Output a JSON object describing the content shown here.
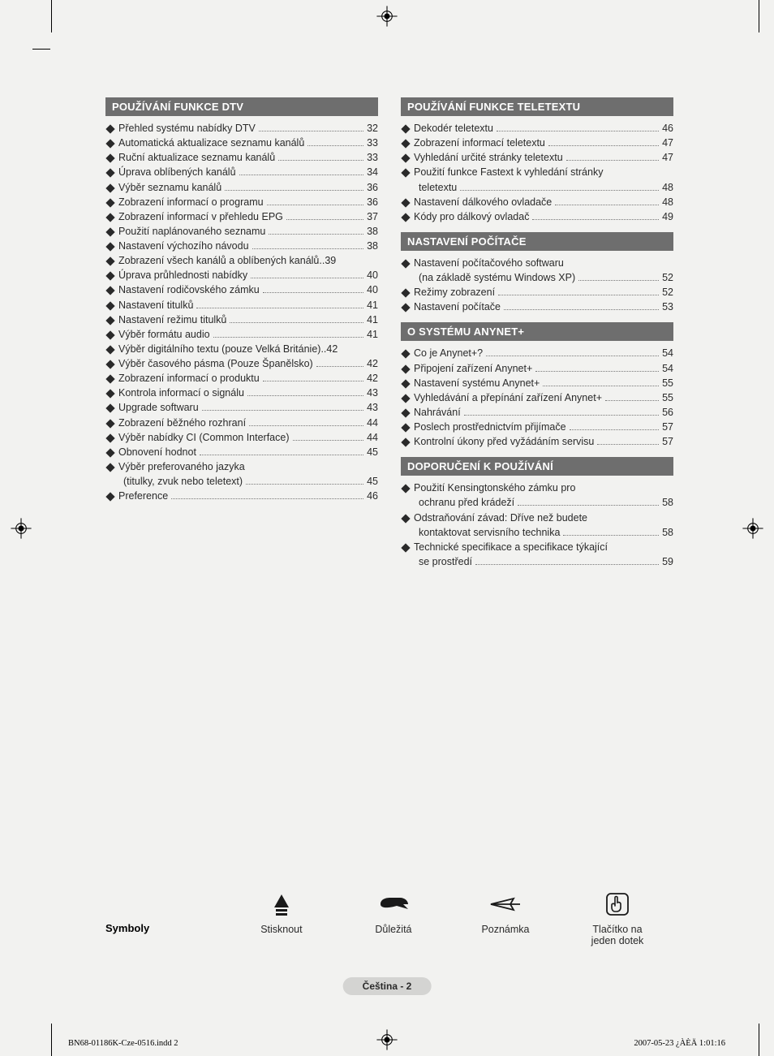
{
  "page": {
    "badge": "Čeština - 2",
    "footer_left": "BN68-01186K-Cze-0516.indd   2",
    "footer_right": "2007-05-23   ¿ÀÈÄ 1:01:16"
  },
  "symbols": {
    "label": "Symboly",
    "items": [
      {
        "caption": "Stisknout"
      },
      {
        "caption": "Důležitá"
      },
      {
        "caption": "Poznámka"
      },
      {
        "caption": "Tlačítko na\njeden dotek"
      }
    ]
  },
  "columns": [
    {
      "sections": [
        {
          "title": "POUŽÍVÁNÍ FUNKCE DTV",
          "items": [
            {
              "text": "Přehled systému nabídky DTV",
              "page": "32"
            },
            {
              "text": "Automatická aktualizace seznamu kanálů",
              "page": "33"
            },
            {
              "text": "Ruční aktualizace seznamu kanálů",
              "page": "33"
            },
            {
              "text": "Úprava oblíbených kanálů",
              "page": "34"
            },
            {
              "text": "Výběr seznamu kanálů",
              "page": "36"
            },
            {
              "text": "Zobrazení informací o programu",
              "page": "36"
            },
            {
              "text": "Zobrazení informací v přehledu EPG",
              "page": "37"
            },
            {
              "text": "Použití naplánovaného seznamu",
              "page": "38"
            },
            {
              "text": "Nastavení výchozího návodu",
              "page": "38"
            },
            {
              "text": "Zobrazení všech kanálů a oblíbených kanálů",
              "page": "39",
              "tight": true
            },
            {
              "text": "Úprava průhlednosti nabídky",
              "page": "40"
            },
            {
              "text": "Nastavení rodičovského zámku",
              "page": "40"
            },
            {
              "text": "Nastavení titulků",
              "page": "41"
            },
            {
              "text": "Nastavení režimu titulků",
              "page": "41"
            },
            {
              "text": "Výběr formátu audio",
              "page": "41"
            },
            {
              "text": "Výběr digitálního textu (pouze Velká Británie)",
              "page": "42",
              "tight": true
            },
            {
              "text": "Výběr časového pásma (Pouze Španělsko)",
              "page": "42"
            },
            {
              "text": "Zobrazení informací o produktu",
              "page": "42"
            },
            {
              "text": "Kontrola informací o signálu",
              "page": "43"
            },
            {
              "text": "Upgrade softwaru",
              "page": "43"
            },
            {
              "text": "Zobrazení běžného rozhraní",
              "page": "44"
            },
            {
              "text": "Výběr nabídky CI (Common Interface)",
              "page": "44"
            },
            {
              "text": "Obnovení hodnot",
              "page": "45"
            },
            {
              "text": "Výběr preferovaného jazyka",
              "page": ""
            },
            {
              "text": "(titulky, zvuk nebo teletext)",
              "page": "45",
              "cont": true
            },
            {
              "text": "Preference",
              "page": "46"
            }
          ]
        }
      ]
    },
    {
      "sections": [
        {
          "title": "POUŽÍVÁNÍ FUNKCE TELETEXTU",
          "items": [
            {
              "text": "Dekodér teletextu",
              "page": "46"
            },
            {
              "text": "Zobrazení informací teletextu",
              "page": "47"
            },
            {
              "text": "Vyhledání určité stránky teletextu",
              "page": "47"
            },
            {
              "text": "Použití funkce Fastext k vyhledání stránky",
              "page": ""
            },
            {
              "text": "teletextu",
              "page": "48",
              "cont": true
            },
            {
              "text": "Nastavení dálkového ovladače",
              "page": "48"
            },
            {
              "text": "Kódy pro dálkový ovladač",
              "page": "49"
            }
          ]
        },
        {
          "title": "NASTAVENÍ POČÍTAČE",
          "items": [
            {
              "text": "Nastavení počítačového softwaru",
              "page": ""
            },
            {
              "text": "(na základě systému Windows XP)",
              "page": "52",
              "cont": true
            },
            {
              "text": "Režimy zobrazení",
              "page": "52"
            },
            {
              "text": "Nastavení počítače",
              "page": "53"
            }
          ]
        },
        {
          "title": "O SYSTÉMU ANYNET+",
          "items": [
            {
              "text": "Co je Anynet+?",
              "page": "54"
            },
            {
              "text": "Připojení zařízení Anynet+",
              "page": "54"
            },
            {
              "text": "Nastavení systému Anynet+",
              "page": "55"
            },
            {
              "text": "Vyhledávání a přepínání zařízení Anynet+",
              "page": "55"
            },
            {
              "text": "Nahrávání",
              "page": "56"
            },
            {
              "text": "Poslech prostřednictvím přijímače",
              "page": "57"
            },
            {
              "text": "Kontrolní úkony před vyžádáním servisu",
              "page": "57"
            }
          ]
        },
        {
          "title": "DOPORUČENÍ K POUŽÍVÁNÍ",
          "items": [
            {
              "text": "Použití Kensingtonského zámku pro",
              "page": ""
            },
            {
              "text": "ochranu před krádeží",
              "page": "58",
              "cont": true
            },
            {
              "text": "Odstraňování závad: Dříve než budete",
              "page": ""
            },
            {
              "text": "kontaktovat servisního technika",
              "page": "58",
              "cont": true
            },
            {
              "text": "Technické specifikace a specifikace týkající",
              "page": ""
            },
            {
              "text": "se prostředí",
              "page": "59",
              "cont": true
            }
          ]
        }
      ]
    }
  ],
  "colors": {
    "header_bg": "#6e6e6e",
    "header_text": "#ffffff",
    "body_text": "#2a2a2a",
    "page_bg": "#f2f2f0",
    "badge_bg": "#d4d4d2"
  }
}
